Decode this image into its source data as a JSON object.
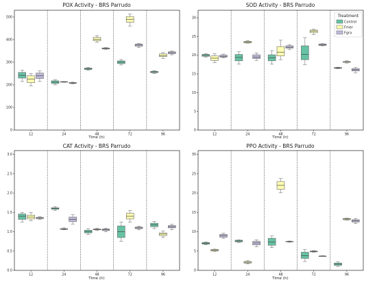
{
  "colors": {
    "Control": "#66c2a5",
    "Fmer": "#ffffb3",
    "Fgra": "#bebada"
  },
  "chart_data": [
    {
      "type": "box",
      "title": "POX Activity - BRS Parrudo",
      "xlabel": "Time (h)",
      "categories": [
        "12",
        "24",
        "48",
        "72",
        "96"
      ],
      "ylim": [
        0,
        530
      ],
      "yticks": [
        0,
        100,
        200,
        300,
        400,
        500
      ],
      "series": [
        {
          "name": "Control",
          "boxes": [
            {
              "min": 215,
              "q1": 230,
              "median": 242,
              "q3": 255,
              "max": 265
            },
            {
              "min": 200,
              "q1": 206,
              "median": 212,
              "q3": 218,
              "max": 222
            },
            {
              "min": 265,
              "q1": 268,
              "median": 271,
              "q3": 274,
              "max": 277
            },
            {
              "min": 288,
              "q1": 294,
              "median": 300,
              "q3": 306,
              "max": 312
            },
            {
              "min": 250,
              "q1": 254,
              "median": 257,
              "q3": 260,
              "max": 263
            }
          ]
        },
        {
          "name": "Fmer",
          "boxes": [
            {
              "min": 195,
              "q1": 210,
              "median": 225,
              "q3": 240,
              "max": 250
            },
            {
              "min": 211,
              "q1": 212,
              "median": 213,
              "q3": 214,
              "max": 215
            },
            {
              "min": 388,
              "q1": 395,
              "median": 402,
              "q3": 410,
              "max": 418
            },
            {
              "min": 460,
              "q1": 477,
              "median": 490,
              "q3": 502,
              "max": 513
            },
            {
              "min": 317,
              "q1": 325,
              "median": 330,
              "q3": 337,
              "max": 343
            }
          ]
        },
        {
          "name": "Fgra",
          "boxes": [
            {
              "min": 215,
              "q1": 228,
              "median": 240,
              "q3": 252,
              "max": 262
            },
            {
              "min": 205,
              "q1": 207,
              "median": 208,
              "q3": 210,
              "max": 212
            },
            {
              "min": 357,
              "q1": 359,
              "median": 361,
              "q3": 363,
              "max": 365
            },
            {
              "min": 365,
              "q1": 371,
              "median": 376,
              "q3": 380,
              "max": 383
            },
            {
              "min": 333,
              "q1": 338,
              "median": 342,
              "q3": 346,
              "max": 350
            }
          ]
        }
      ]
    },
    {
      "type": "box",
      "title": "SOD Activity - BRS Parrudo",
      "xlabel": "Time (h)",
      "categories": [
        "12",
        "24",
        "48",
        "72",
        "96"
      ],
      "ylim": [
        0,
        32
      ],
      "yticks": [
        0,
        5,
        10,
        15,
        20,
        25,
        30
      ],
      "legend": {
        "title": "Treatment",
        "position": "top-right",
        "entries": [
          "Control",
          "Fmer",
          "Fgra"
        ]
      },
      "series": [
        {
          "name": "Control",
          "boxes": [
            {
              "min": 19.5,
              "q1": 19.7,
              "median": 20.0,
              "q3": 20.2,
              "max": 20.4
            },
            {
              "min": 17.6,
              "q1": 18.5,
              "median": 19.4,
              "q3": 20.2,
              "max": 20.9
            },
            {
              "min": 17.6,
              "q1": 18.5,
              "median": 19.3,
              "q3": 20.1,
              "max": 21.2
            },
            {
              "min": 17.5,
              "q1": 18.8,
              "median": 20.2,
              "q3": 22.5,
              "max": 24.7
            },
            {
              "min": 16.4,
              "q1": 16.5,
              "median": 16.6,
              "q3": 16.7,
              "max": 16.8
            }
          ]
        },
        {
          "name": "Fmer",
          "boxes": [
            {
              "min": 18.0,
              "q1": 18.6,
              "median": 19.2,
              "q3": 19.8,
              "max": 20.4
            },
            {
              "min": 23.2,
              "q1": 23.3,
              "median": 23.5,
              "q3": 23.7,
              "max": 23.9
            },
            {
              "min": 18.8,
              "q1": 19.8,
              "median": 20.8,
              "q3": 22.3,
              "max": 24.0
            },
            {
              "min": 25.5,
              "q1": 26.0,
              "median": 26.4,
              "q3": 26.7,
              "max": 26.9
            },
            {
              "min": 17.9,
              "q1": 18.1,
              "median": 18.2,
              "q3": 18.3,
              "max": 18.5
            }
          ]
        },
        {
          "name": "Fgra",
          "boxes": [
            {
              "min": 19.3,
              "q1": 19.5,
              "median": 19.7,
              "q3": 20.0,
              "max": 20.3
            },
            {
              "min": 18.6,
              "q1": 19.1,
              "median": 19.5,
              "q3": 20.1,
              "max": 20.6
            },
            {
              "min": 21.5,
              "q1": 21.9,
              "median": 22.1,
              "q3": 22.5,
              "max": 22.8
            },
            {
              "min": 22.5,
              "q1": 22.6,
              "median": 22.8,
              "q3": 23.0,
              "max": 23.1
            },
            {
              "min": 15.3,
              "q1": 15.8,
              "median": 16.1,
              "q3": 16.4,
              "max": 16.7
            }
          ]
        }
      ]
    },
    {
      "type": "box",
      "title": "CAT Activity - BRS Parrudo",
      "xlabel": "Time (h)",
      "categories": [
        "12",
        "24",
        "48",
        "72",
        "96"
      ],
      "ylim": [
        0,
        3.1
      ],
      "yticks": [
        0.0,
        0.5,
        1.0,
        1.5,
        2.0,
        2.5,
        3.0
      ],
      "series": [
        {
          "name": "Control",
          "boxes": [
            {
              "min": 1.25,
              "q1": 1.32,
              "median": 1.4,
              "q3": 1.46,
              "max": 1.5
            },
            {
              "min": 1.55,
              "q1": 1.58,
              "median": 1.6,
              "q3": 1.62,
              "max": 1.65
            },
            {
              "min": 0.93,
              "q1": 0.97,
              "median": 1.0,
              "q3": 1.04,
              "max": 1.08
            },
            {
              "min": 0.75,
              "q1": 0.85,
              "median": 1.0,
              "q3": 1.15,
              "max": 1.25
            },
            {
              "min": 1.08,
              "q1": 1.13,
              "median": 1.18,
              "q3": 1.22,
              "max": 1.27
            }
          ]
        },
        {
          "name": "Fmer",
          "boxes": [
            {
              "min": 1.28,
              "q1": 1.33,
              "median": 1.38,
              "q3": 1.43,
              "max": 1.5
            },
            {
              "min": 1.05,
              "q1": 1.06,
              "median": 1.07,
              "q3": 1.08,
              "max": 1.1
            },
            {
              "min": 1.03,
              "q1": 1.05,
              "median": 1.06,
              "q3": 1.07,
              "max": 1.09
            },
            {
              "min": 1.25,
              "q1": 1.33,
              "median": 1.4,
              "q3": 1.48,
              "max": 1.55
            },
            {
              "min": 0.85,
              "q1": 0.9,
              "median": 0.94,
              "q3": 0.97,
              "max": 1.02
            }
          ]
        },
        {
          "name": "Fgra",
          "boxes": [
            {
              "min": 1.32,
              "q1": 1.34,
              "median": 1.36,
              "q3": 1.37,
              "max": 1.39
            },
            {
              "min": 1.2,
              "q1": 1.26,
              "median": 1.32,
              "q3": 1.38,
              "max": 1.44
            },
            {
              "min": 1.0,
              "q1": 1.03,
              "median": 1.05,
              "q3": 1.07,
              "max": 1.09
            },
            {
              "min": 1.05,
              "q1": 1.08,
              "median": 1.1,
              "q3": 1.12,
              "max": 1.14
            },
            {
              "min": 1.05,
              "q1": 1.1,
              "median": 1.13,
              "q3": 1.16,
              "max": 1.19
            }
          ]
        }
      ]
    },
    {
      "type": "box",
      "title": "PPO Activity - BRS Parrudo",
      "xlabel": "Time (h)",
      "categories": [
        "12",
        "24",
        "48",
        "72",
        "96"
      ],
      "ylim": [
        0,
        31
      ],
      "yticks": [
        0,
        5,
        10,
        15,
        20,
        25,
        30
      ],
      "series": [
        {
          "name": "Control",
          "boxes": [
            {
              "min": 6.6,
              "q1": 6.8,
              "median": 7.0,
              "q3": 7.2,
              "max": 7.4
            },
            {
              "min": 7.2,
              "q1": 7.4,
              "median": 7.6,
              "q3": 7.8,
              "max": 7.9
            },
            {
              "min": 5.9,
              "q1": 6.5,
              "median": 7.3,
              "q3": 8.3,
              "max": 8.9
            },
            {
              "min": 2.3,
              "q1": 3.1,
              "median": 3.8,
              "q3": 4.7,
              "max": 5.4
            },
            {
              "min": 1.0,
              "q1": 1.3,
              "median": 1.6,
              "q3": 1.9,
              "max": 2.2
            }
          ]
        },
        {
          "name": "Fmer",
          "boxes": [
            {
              "min": 4.9,
              "q1": 5.0,
              "median": 5.2,
              "q3": 5.4,
              "max": 5.5
            },
            {
              "min": 1.7,
              "q1": 1.9,
              "median": 2.1,
              "q3": 2.3,
              "max": 2.5
            },
            {
              "min": 20.1,
              "q1": 21.0,
              "median": 22.0,
              "q3": 23.0,
              "max": 23.8
            },
            {
              "min": 4.7,
              "q1": 4.8,
              "median": 4.9,
              "q3": 5.0,
              "max": 5.1
            },
            {
              "min": 13.0,
              "q1": 13.1,
              "median": 13.3,
              "q3": 13.4,
              "max": 13.5
            }
          ]
        },
        {
          "name": "Fgra",
          "boxes": [
            {
              "min": 8.3,
              "q1": 8.6,
              "median": 9.0,
              "q3": 9.3,
              "max": 9.6
            },
            {
              "min": 6.1,
              "q1": 6.6,
              "median": 7.1,
              "q3": 7.5,
              "max": 7.9
            },
            {
              "min": 7.3,
              "q1": 7.4,
              "median": 7.4,
              "q3": 7.5,
              "max": 7.6
            },
            {
              "min": 3.6,
              "q1": 3.6,
              "median": 3.7,
              "q3": 3.7,
              "max": 3.8
            },
            {
              "min": 12.1,
              "q1": 12.5,
              "median": 12.8,
              "q3": 13.1,
              "max": 13.4
            }
          ]
        }
      ]
    }
  ]
}
